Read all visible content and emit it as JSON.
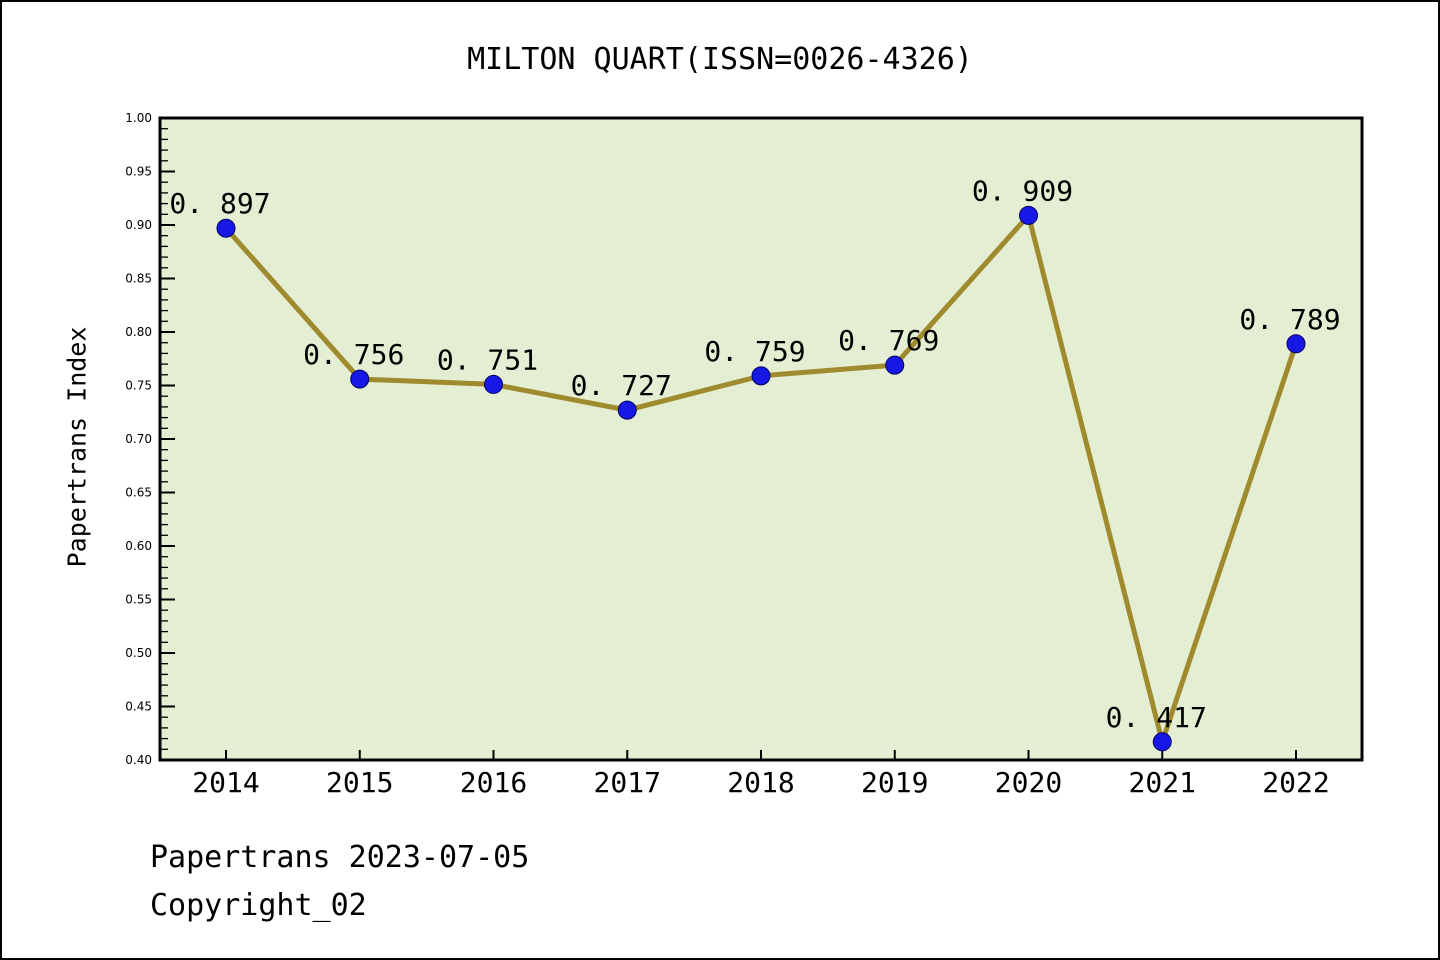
{
  "title": "MILTON QUART(ISSN=0026-4326)",
  "footer": {
    "line1": "Papertrans 2023-07-05",
    "line2": "Copyright_02"
  },
  "chart_data": {
    "type": "line",
    "title": "MILTON QUART(ISSN=0026-4326)",
    "xlabel": "",
    "ylabel": "Papertrans Index",
    "categories": [
      "2014",
      "2015",
      "2016",
      "2017",
      "2018",
      "2019",
      "2020",
      "2021",
      "2022"
    ],
    "series": [
      {
        "name": "Papertrans Index",
        "values": [
          0.897,
          0.756,
          0.751,
          0.727,
          0.759,
          0.769,
          0.909,
          0.417,
          0.789
        ],
        "point_labels": [
          "0.897",
          "0.756",
          "0.751",
          "0.727",
          "0.759",
          "0.769",
          "0.909",
          "0.417",
          "0.789"
        ]
      }
    ],
    "ylim": [
      0.4,
      1.0
    ],
    "y_major_step": 0.05,
    "y_minor_step": 0.01,
    "y_tick_labels": [
      "0.40",
      "0.45",
      "0.50",
      "0.55",
      "0.60",
      "0.65",
      "0.70",
      "0.75",
      "0.80",
      "0.85",
      "0.90",
      "0.95",
      "1.00"
    ],
    "grid": false,
    "legend": "none",
    "colors": {
      "line": "#a08a2e",
      "marker_fill": "#1717e6",
      "marker_edge": "#000060",
      "plot_background": "#e3eed3",
      "figure_background": "#ffffff",
      "axis": "#000000",
      "text": "#000000"
    }
  }
}
